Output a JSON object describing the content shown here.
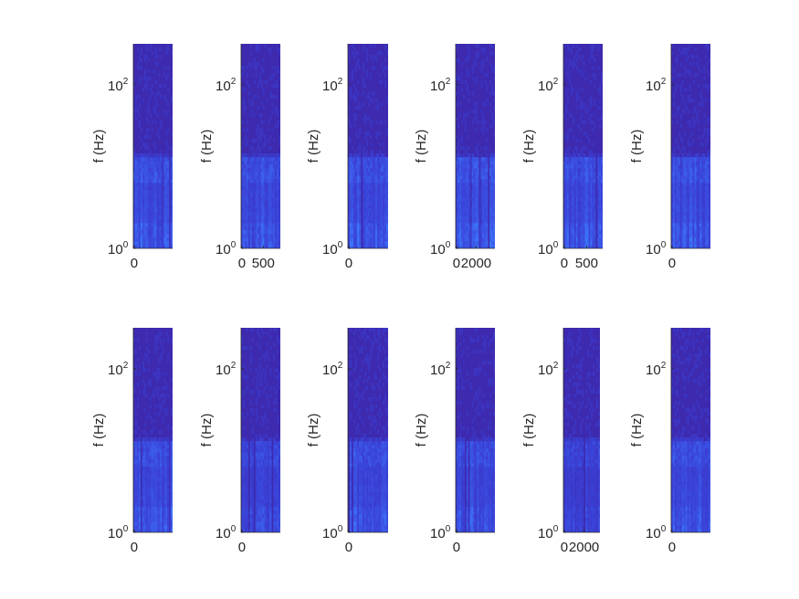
{
  "figure": {
    "layout": {
      "rows": 2,
      "cols": 6
    },
    "colormap": [
      "#3e26a8",
      "#3a41d6",
      "#3d6cf6",
      "#2b96f0",
      "#1fb8d6"
    ]
  },
  "chart_data": [
    {
      "type": "heatmap",
      "row": 1,
      "col": 1,
      "ylabel": "f (Hz)",
      "y_scale": "log",
      "ylim": [
        1,
        316
      ],
      "yticks": [
        {
          "base": "10",
          "exp": "0"
        },
        {
          "base": "10",
          "exp": "2"
        }
      ],
      "xticks": [
        "0"
      ],
      "xlim": [
        -20,
        880
      ],
      "x_tick_values": [
        0
      ],
      "texture": {
        "seed": 11,
        "tail": 0.55,
        "bright": 0.85
      }
    },
    {
      "type": "heatmap",
      "row": 1,
      "col": 2,
      "ylabel": "f (Hz)",
      "y_scale": "log",
      "ylim": [
        1,
        316
      ],
      "yticks": [
        {
          "base": "10",
          "exp": "0"
        },
        {
          "base": "10",
          "exp": "2"
        }
      ],
      "xticks": [
        "0",
        "500"
      ],
      "xlim": [
        -20,
        900
      ],
      "x_tick_values": [
        0,
        500
      ],
      "texture": {
        "seed": 23,
        "tail": 0.5,
        "bright": 0.75
      }
    },
    {
      "type": "heatmap",
      "row": 1,
      "col": 3,
      "ylabel": "f (Hz)",
      "y_scale": "log",
      "ylim": [
        1,
        316
      ],
      "yticks": [
        {
          "base": "10",
          "exp": "0"
        },
        {
          "base": "10",
          "exp": "2"
        }
      ],
      "xticks": [
        "0"
      ],
      "xlim": [
        -20,
        880
      ],
      "x_tick_values": [
        0
      ],
      "texture": {
        "seed": 37,
        "tail": 0.5,
        "bright": 0.8
      }
    },
    {
      "type": "heatmap",
      "row": 1,
      "col": 4,
      "ylabel": "f (Hz)",
      "y_scale": "log",
      "ylim": [
        1,
        316
      ],
      "yticks": [
        {
          "base": "10",
          "exp": "0"
        },
        {
          "base": "10",
          "exp": "2"
        }
      ],
      "xticks": [
        "0",
        "2000"
      ],
      "xlim": [
        -80,
        3900
      ],
      "x_tick_values": [
        0,
        2000
      ],
      "texture": {
        "seed": 41,
        "tail": 0.55,
        "bright": 0.8
      }
    },
    {
      "type": "heatmap",
      "row": 1,
      "col": 5,
      "ylabel": "f (Hz)",
      "y_scale": "log",
      "ylim": [
        1,
        316
      ],
      "yticks": [
        {
          "base": "10",
          "exp": "0"
        },
        {
          "base": "10",
          "exp": "2"
        }
      ],
      "xticks": [
        "0",
        "500"
      ],
      "xlim": [
        -20,
        860
      ],
      "x_tick_values": [
        0,
        500
      ],
      "texture": {
        "seed": 53,
        "tail": 0.5,
        "bright": 0.85
      }
    },
    {
      "type": "heatmap",
      "row": 1,
      "col": 6,
      "ylabel": "f (Hz)",
      "y_scale": "log",
      "ylim": [
        1,
        316
      ],
      "yticks": [
        {
          "base": "10",
          "exp": "0"
        },
        {
          "base": "10",
          "exp": "2"
        }
      ],
      "xticks": [
        "0"
      ],
      "xlim": [
        -20,
        880
      ],
      "x_tick_values": [
        0
      ],
      "texture": {
        "seed": 67,
        "tail": 0.5,
        "bright": 0.7
      }
    },
    {
      "type": "heatmap",
      "row": 2,
      "col": 1,
      "ylabel": "f (Hz)",
      "y_scale": "log",
      "ylim": [
        1,
        316
      ],
      "yticks": [
        {
          "base": "10",
          "exp": "0"
        },
        {
          "base": "10",
          "exp": "2"
        }
      ],
      "xticks": [
        "0"
      ],
      "xlim": [
        -20,
        880
      ],
      "x_tick_values": [
        0
      ],
      "texture": {
        "seed": 71,
        "tail": 0.5,
        "bright": 0.75
      }
    },
    {
      "type": "heatmap",
      "row": 2,
      "col": 2,
      "ylabel": "f (Hz)",
      "y_scale": "log",
      "ylim": [
        1,
        316
      ],
      "yticks": [
        {
          "base": "10",
          "exp": "0"
        },
        {
          "base": "10",
          "exp": "2"
        }
      ],
      "xticks": [
        "0"
      ],
      "xlim": [
        -20,
        880
      ],
      "x_tick_values": [
        0
      ],
      "texture": {
        "seed": 83,
        "tail": 0.35,
        "bright": 0.5
      }
    },
    {
      "type": "heatmap",
      "row": 2,
      "col": 3,
      "ylabel": "f (Hz)",
      "y_scale": "log",
      "ylim": [
        1,
        316
      ],
      "yticks": [
        {
          "base": "10",
          "exp": "0"
        },
        {
          "base": "10",
          "exp": "2"
        }
      ],
      "xticks": [
        "0"
      ],
      "xlim": [
        -20,
        880
      ],
      "x_tick_values": [
        0
      ],
      "texture": {
        "seed": 97,
        "tail": 0.45,
        "bright": 0.6
      }
    },
    {
      "type": "heatmap",
      "row": 2,
      "col": 4,
      "ylabel": "f (Hz)",
      "y_scale": "log",
      "ylim": [
        1,
        316
      ],
      "yticks": [
        {
          "base": "10",
          "exp": "0"
        },
        {
          "base": "10",
          "exp": "2"
        }
      ],
      "xticks": [
        "0"
      ],
      "xlim": [
        -20,
        880
      ],
      "x_tick_values": [
        0
      ],
      "texture": {
        "seed": 101,
        "tail": 0.5,
        "bright": 0.7
      }
    },
    {
      "type": "heatmap",
      "row": 2,
      "col": 5,
      "ylabel": "f (Hz)",
      "y_scale": "log",
      "ylim": [
        1,
        316
      ],
      "yticks": [
        {
          "base": "10",
          "exp": "0"
        },
        {
          "base": "10",
          "exp": "2"
        }
      ],
      "xticks": [
        "0",
        "2000"
      ],
      "xlim": [
        -80,
        3600
      ],
      "x_tick_values": [
        0,
        2000
      ],
      "texture": {
        "seed": 113,
        "tail": 0.3,
        "bright": 0.45
      }
    },
    {
      "type": "heatmap",
      "row": 2,
      "col": 6,
      "ylabel": "f (Hz)",
      "y_scale": "log",
      "ylim": [
        1,
        316
      ],
      "yticks": [
        {
          "base": "10",
          "exp": "0"
        },
        {
          "base": "10",
          "exp": "2"
        }
      ],
      "xticks": [
        "0"
      ],
      "xlim": [
        -20,
        880
      ],
      "x_tick_values": [
        0
      ],
      "texture": {
        "seed": 127,
        "tail": 0.5,
        "bright": 0.75
      }
    }
  ]
}
